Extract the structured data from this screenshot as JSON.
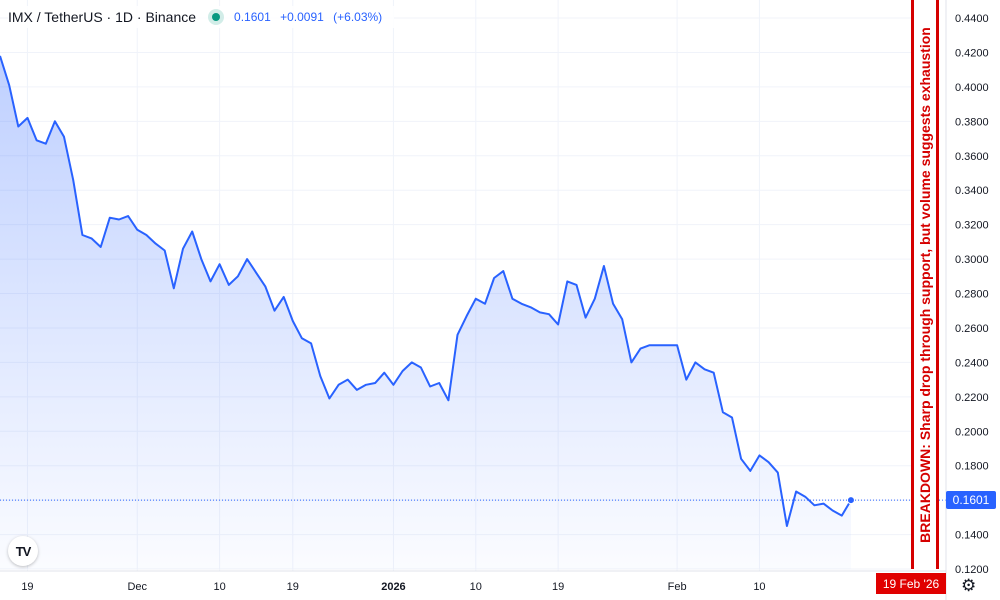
{
  "header": {
    "symbol": "IMX / TetherUS · 1D · Binance",
    "last": "0.1601",
    "change": "+0.0091",
    "change_pct": "(+6.03%)"
  },
  "annotation": {
    "text": "BREAKDOWN: Sharp drop through support, but volume suggests exhaustion",
    "date_label": "19 Feb '26"
  },
  "price_label": "0.1601",
  "logo_text": "TV",
  "icons": {
    "live": "live-status-dot-icon",
    "settings": "gear-icon",
    "logo": "tradingview-logo-icon"
  },
  "colors": {
    "line": "#2962ff",
    "annotation": "#d50000",
    "live": "#089981",
    "date_tag": "#e00000"
  },
  "chart_data": {
    "type": "area",
    "xlabel": "",
    "ylabel": "",
    "ylim": [
      0.12,
      0.45
    ],
    "grid": true,
    "x_ticks": [
      "19",
      "Dec",
      "10",
      "19",
      "2026",
      "10",
      "19",
      "Feb",
      "10"
    ],
    "x_tick_index": [
      3,
      15,
      24,
      32,
      43,
      52,
      61,
      74,
      83
    ],
    "y_ticks": [
      "0.4400",
      "0.4200",
      "0.4000",
      "0.3800",
      "0.3600",
      "0.3400",
      "0.3200",
      "0.3000",
      "0.2800",
      "0.2600",
      "0.2400",
      "0.2200",
      "0.2000",
      "0.1800",
      "0.1600",
      "0.1400",
      "0.1200"
    ],
    "y_tick_values": [
      0.44,
      0.42,
      0.4,
      0.38,
      0.36,
      0.34,
      0.32,
      0.3,
      0.28,
      0.26,
      0.24,
      0.22,
      0.2,
      0.18,
      0.16,
      0.14,
      0.12
    ],
    "series": [
      {
        "values": [
          0.418,
          0.401,
          0.377,
          0.382,
          0.369,
          0.367,
          0.38,
          0.371,
          0.346,
          0.314,
          0.312,
          0.307,
          0.324,
          0.323,
          0.325,
          0.317,
          0.314,
          0.309,
          0.305,
          0.283,
          0.306,
          0.316,
          0.3,
          0.287,
          0.297,
          0.285,
          0.29,
          0.3,
          0.292,
          0.284,
          0.27,
          0.278,
          0.264,
          0.254,
          0.251,
          0.232,
          0.219,
          0.227,
          0.23,
          0.224,
          0.227,
          0.228,
          0.234,
          0.227,
          0.235,
          0.24,
          0.237,
          0.226,
          0.228,
          0.218,
          0.256,
          0.267,
          0.277,
          0.274,
          0.289,
          0.293,
          0.277,
          0.274,
          0.272,
          0.269,
          0.268,
          0.262,
          0.287,
          0.285,
          0.266,
          0.277,
          0.296,
          0.274,
          0.265,
          0.24,
          0.248,
          0.25,
          0.25,
          0.25,
          0.25,
          0.23,
          0.24,
          0.236,
          0.234,
          0.211,
          0.208,
          0.184,
          0.177,
          0.186,
          0.182,
          0.176,
          0.145,
          0.165,
          0.162,
          0.157,
          0.158,
          0.154,
          0.151,
          0.16
        ]
      }
    ]
  }
}
